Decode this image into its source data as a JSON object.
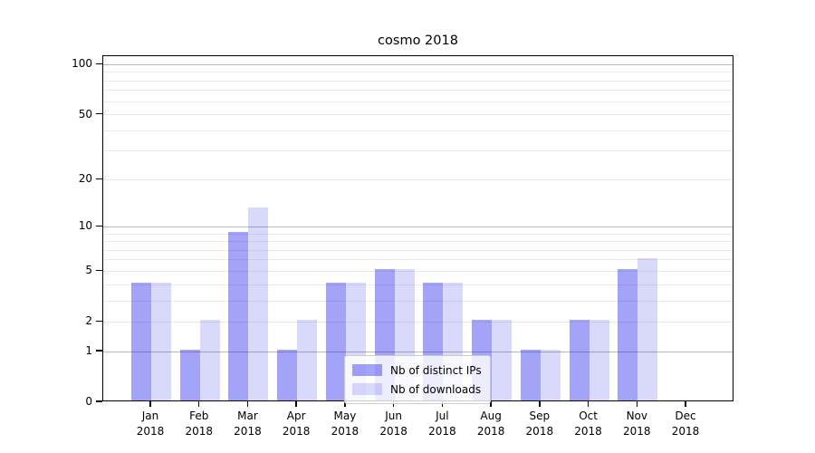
{
  "chart_data": {
    "type": "bar",
    "title": "cosmo 2018",
    "categories": [
      "Jan",
      "Feb",
      "Mar",
      "Apr",
      "May",
      "Jun",
      "Jul",
      "Aug",
      "Sep",
      "Oct",
      "Nov",
      "Dec"
    ],
    "year_label": "2018",
    "series": [
      {
        "name": "Nb of distinct IPs",
        "color": "rgba(0, 0, 235, 0.36)",
        "values": [
          4,
          1,
          9,
          1,
          4,
          5,
          4,
          2,
          1,
          2,
          5,
          0
        ]
      },
      {
        "name": "Nb of downloads",
        "color": "rgba(0, 0, 235, 0.15)",
        "values": [
          4,
          2,
          13,
          2,
          4,
          5,
          4,
          2,
          1,
          2,
          6,
          0
        ]
      }
    ],
    "yscale": "log1p",
    "yticks": [
      0,
      1,
      2,
      5,
      10,
      20,
      50,
      100
    ],
    "ylim": [
      0,
      113
    ],
    "xlabel": "",
    "ylabel": "",
    "grid": "horizontal",
    "legend_position": "lower center"
  },
  "colors": {
    "grid_major": "#b9b9b9",
    "grid_minor": "#eaeaea",
    "spine": "#000000",
    "bar_ips": "rgba(0, 0, 235, 0.36)",
    "bar_downloads": "rgba(0, 0, 235, 0.15)"
  }
}
